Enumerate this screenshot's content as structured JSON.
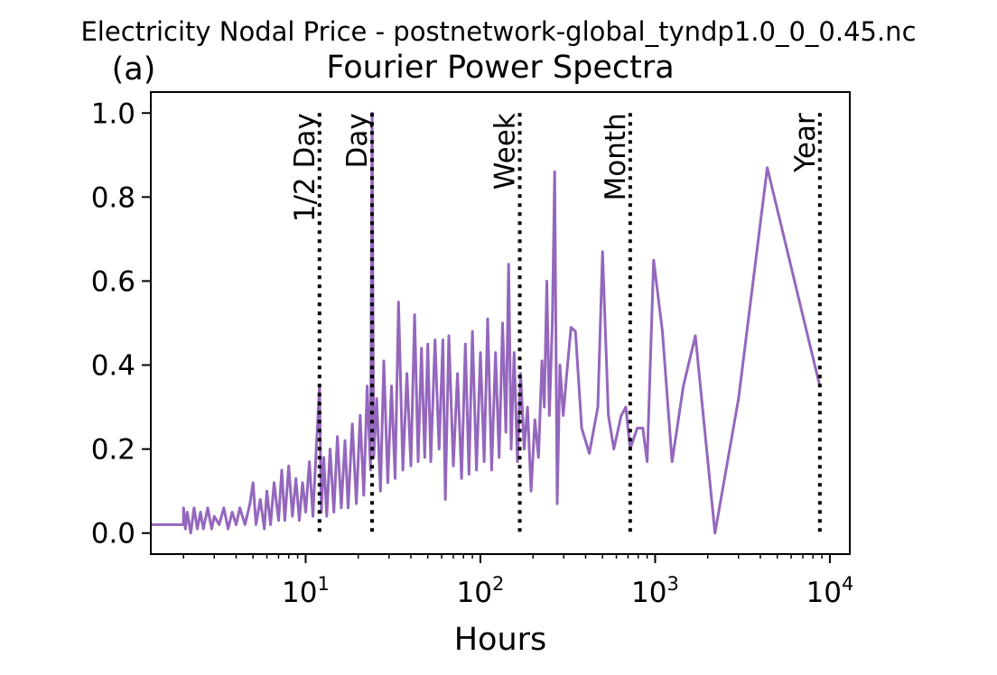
{
  "figure": {
    "suptitle": "Electricity Nodal Price - postnetwork-global_tyndp1.0_0_0.45.nc",
    "panel_label": "(a)"
  },
  "chart_data": {
    "type": "line",
    "title": "Fourier Power Spectra",
    "xlabel": "Hours",
    "ylabel": "",
    "xscale": "log",
    "xlim": [
      1.3,
      13000
    ],
    "ylim": [
      -0.05,
      1.05
    ],
    "grid": false,
    "line_color": "#9467bd",
    "xticks": [
      {
        "value": 10,
        "base": "10",
        "exp": "1"
      },
      {
        "value": 100,
        "base": "10",
        "exp": "2"
      },
      {
        "value": 1000,
        "base": "10",
        "exp": "3"
      },
      {
        "value": 10000,
        "base": "10",
        "exp": "4"
      }
    ],
    "yticks": [
      {
        "value": 0.0,
        "label": "0.0"
      },
      {
        "value": 0.2,
        "label": "0.2"
      },
      {
        "value": 0.4,
        "label": "0.4"
      },
      {
        "value": 0.6,
        "label": "0.6"
      },
      {
        "value": 0.8,
        "label": "0.8"
      },
      {
        "value": 1.0,
        "label": "1.0"
      }
    ],
    "reference_lines": [
      {
        "x": 12,
        "label": "1/2 Day",
        "color": "#000000"
      },
      {
        "x": 24,
        "label": "Day",
        "color": "#000000"
      },
      {
        "x": 168,
        "label": "Week",
        "color": "#000000"
      },
      {
        "x": 720,
        "label": "Month",
        "color": "#000000"
      },
      {
        "x": 8760,
        "label": "Year",
        "color": "#000000"
      }
    ],
    "series": [
      {
        "points": [
          [
            1.3,
            0.02
          ],
          [
            2.0,
            0.02
          ],
          [
            2.0,
            0.06
          ],
          [
            2.05,
            0.01
          ],
          [
            2.1,
            0.05
          ],
          [
            2.2,
            0.0
          ],
          [
            2.3,
            0.06
          ],
          [
            2.4,
            0.01
          ],
          [
            2.5,
            0.05
          ],
          [
            2.6,
            0.01
          ],
          [
            2.75,
            0.06
          ],
          [
            2.9,
            0.01
          ],
          [
            3.0,
            0.04
          ],
          [
            3.2,
            0.02
          ],
          [
            3.4,
            0.06
          ],
          [
            3.6,
            0.01
          ],
          [
            3.8,
            0.05
          ],
          [
            4.0,
            0.02
          ],
          [
            4.2,
            0.06
          ],
          [
            4.5,
            0.02
          ],
          [
            4.8,
            0.07
          ],
          [
            5.0,
            0.12
          ],
          [
            5.2,
            0.02
          ],
          [
            5.5,
            0.08
          ],
          [
            5.8,
            0.01
          ],
          [
            6.0,
            0.1
          ],
          [
            6.3,
            0.02
          ],
          [
            6.6,
            0.12
          ],
          [
            7.0,
            0.03
          ],
          [
            7.3,
            0.15
          ],
          [
            7.6,
            0.03
          ],
          [
            8.0,
            0.16
          ],
          [
            8.4,
            0.04
          ],
          [
            8.8,
            0.13
          ],
          [
            9.2,
            0.03
          ],
          [
            9.6,
            0.12
          ],
          [
            10.0,
            0.05
          ],
          [
            10.5,
            0.17
          ],
          [
            11.0,
            0.04
          ],
          [
            11.5,
            0.2
          ],
          [
            12.0,
            0.35
          ],
          [
            12.3,
            0.05
          ],
          [
            12.7,
            0.18
          ],
          [
            13.2,
            0.04
          ],
          [
            13.8,
            0.2
          ],
          [
            14.5,
            0.05
          ],
          [
            15.2,
            0.23
          ],
          [
            16.0,
            0.06
          ],
          [
            16.8,
            0.22
          ],
          [
            17.5,
            0.06
          ],
          [
            18.5,
            0.26
          ],
          [
            19.5,
            0.07
          ],
          [
            20.5,
            0.28
          ],
          [
            21.5,
            0.09
          ],
          [
            22.5,
            0.35
          ],
          [
            23.5,
            0.15
          ],
          [
            24.0,
            1.0
          ],
          [
            24.5,
            0.18
          ],
          [
            25.5,
            0.32
          ],
          [
            26.8,
            0.1
          ],
          [
            28.0,
            0.41
          ],
          [
            29.5,
            0.12
          ],
          [
            31.0,
            0.35
          ],
          [
            32.5,
            0.13
          ],
          [
            34.0,
            0.55
          ],
          [
            36.0,
            0.15
          ],
          [
            38.0,
            0.38
          ],
          [
            40.0,
            0.16
          ],
          [
            42.0,
            0.52
          ],
          [
            44.0,
            0.17
          ],
          [
            46.0,
            0.44
          ],
          [
            48.0,
            0.18
          ],
          [
            50.0,
            0.45
          ],
          [
            52.0,
            0.17
          ],
          [
            55.0,
            0.46
          ],
          [
            58.0,
            0.2
          ],
          [
            61.0,
            0.46
          ],
          [
            63.0,
            0.08
          ],
          [
            66.0,
            0.47
          ],
          [
            70.0,
            0.16
          ],
          [
            74.0,
            0.38
          ],
          [
            78.0,
            0.13
          ],
          [
            82.0,
            0.45
          ],
          [
            86.0,
            0.14
          ],
          [
            90.0,
            0.48
          ],
          [
            95.0,
            0.15
          ],
          [
            100.0,
            0.43
          ],
          [
            105.0,
            0.17
          ],
          [
            110.0,
            0.51
          ],
          [
            116.0,
            0.15
          ],
          [
            122.0,
            0.43
          ],
          [
            128.0,
            0.18
          ],
          [
            134.0,
            0.5
          ],
          [
            140.0,
            0.24
          ],
          [
            145.0,
            0.64
          ],
          [
            150.0,
            0.2
          ],
          [
            156.0,
            0.43
          ],
          [
            163.0,
            0.17
          ],
          [
            170.0,
            0.38
          ],
          [
            178.0,
            0.2
          ],
          [
            186.0,
            0.3
          ],
          [
            195.0,
            0.1
          ],
          [
            205.0,
            0.27
          ],
          [
            215.0,
            0.18
          ],
          [
            225.0,
            0.41
          ],
          [
            232.0,
            0.3
          ],
          [
            240.0,
            0.6
          ],
          [
            248.0,
            0.28
          ],
          [
            258.0,
            0.5
          ],
          [
            266.0,
            0.86
          ],
          [
            275.0,
            0.07
          ],
          [
            285.0,
            0.4
          ],
          [
            298.0,
            0.28
          ],
          [
            312.0,
            0.38
          ],
          [
            330.0,
            0.49
          ],
          [
            350.0,
            0.48
          ],
          [
            380.0,
            0.25
          ],
          [
            420.0,
            0.19
          ],
          [
            470.0,
            0.3
          ],
          [
            500.0,
            0.67
          ],
          [
            540.0,
            0.28
          ],
          [
            580.0,
            0.2
          ],
          [
            640.0,
            0.28
          ],
          [
            680.0,
            0.3
          ],
          [
            720.0,
            0.2
          ],
          [
            790.0,
            0.25
          ],
          [
            850.0,
            0.25
          ],
          [
            900.0,
            0.17
          ],
          [
            980.0,
            0.65
          ],
          [
            1100.0,
            0.48
          ],
          [
            1250.0,
            0.17
          ],
          [
            1450.0,
            0.35
          ],
          [
            1700.0,
            0.47
          ],
          [
            2200.0,
            0.0
          ],
          [
            3000.0,
            0.32
          ],
          [
            4380.0,
            0.87
          ],
          [
            8760.0,
            0.35
          ]
        ]
      }
    ]
  }
}
